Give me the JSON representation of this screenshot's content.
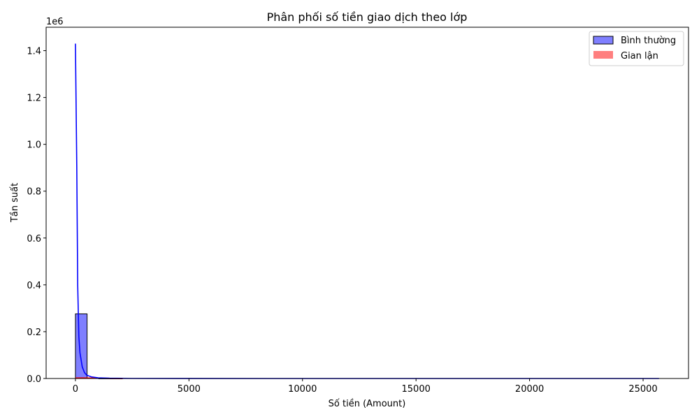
{
  "chart_data": {
    "type": "bar",
    "title": "Phân phối số tiền giao dịch theo lớp",
    "xlabel": "Số tiền (Amount)",
    "ylabel": "Tần suất",
    "y_offset_label": "1e6",
    "xlim": [
      -1290,
      27000
    ],
    "ylim": [
      0,
      1500000
    ],
    "x_ticks": [
      0,
      5000,
      10000,
      15000,
      20000,
      25000
    ],
    "y_ticks": [
      0,
      200000,
      400000,
      600000,
      800000,
      1000000,
      1200000,
      1400000
    ],
    "y_tick_labels": [
      "0.0",
      "0.2",
      "0.4",
      "0.6",
      "0.8",
      "1.0",
      "1.2",
      "1.4"
    ],
    "grid": false,
    "legend_position": "top-right",
    "histogram": {
      "series": "Bình thường",
      "bin_width": 514,
      "bins": [
        {
          "x0": 0,
          "x1": 514,
          "count": 276000
        },
        {
          "x0": 514,
          "x1": 1028,
          "count": 1500
        },
        {
          "x0": 1028,
          "x1": 1542,
          "count": 300
        },
        {
          "x0": 1542,
          "x1": 2056,
          "count": 100
        }
      ]
    },
    "series": [
      {
        "name": "Bình thường",
        "kind": "histogram+kde",
        "color": "#0000ff",
        "fill_color": "#7f7fff",
        "kde": [
          [
            0,
            1430000
          ],
          [
            60,
            900000
          ],
          [
            100,
            400000
          ],
          [
            150,
            180000
          ],
          [
            200,
            110000
          ],
          [
            300,
            50000
          ],
          [
            400,
            25000
          ],
          [
            500,
            14000
          ],
          [
            700,
            7000
          ],
          [
            1000,
            3000
          ],
          [
            1500,
            1200
          ],
          [
            2500,
            400
          ],
          [
            5000,
            100
          ],
          [
            10000,
            0
          ],
          [
            25700,
            0
          ]
        ]
      },
      {
        "name": "Gian lận",
        "kind": "histogram+kde",
        "color": "#ff0000",
        "fill_color": "#ff7f7f",
        "kde": [
          [
            0,
            2000
          ],
          [
            300,
            2500
          ],
          [
            600,
            2000
          ],
          [
            1000,
            1200
          ],
          [
            1500,
            500
          ],
          [
            2100,
            150
          ]
        ]
      }
    ]
  }
}
